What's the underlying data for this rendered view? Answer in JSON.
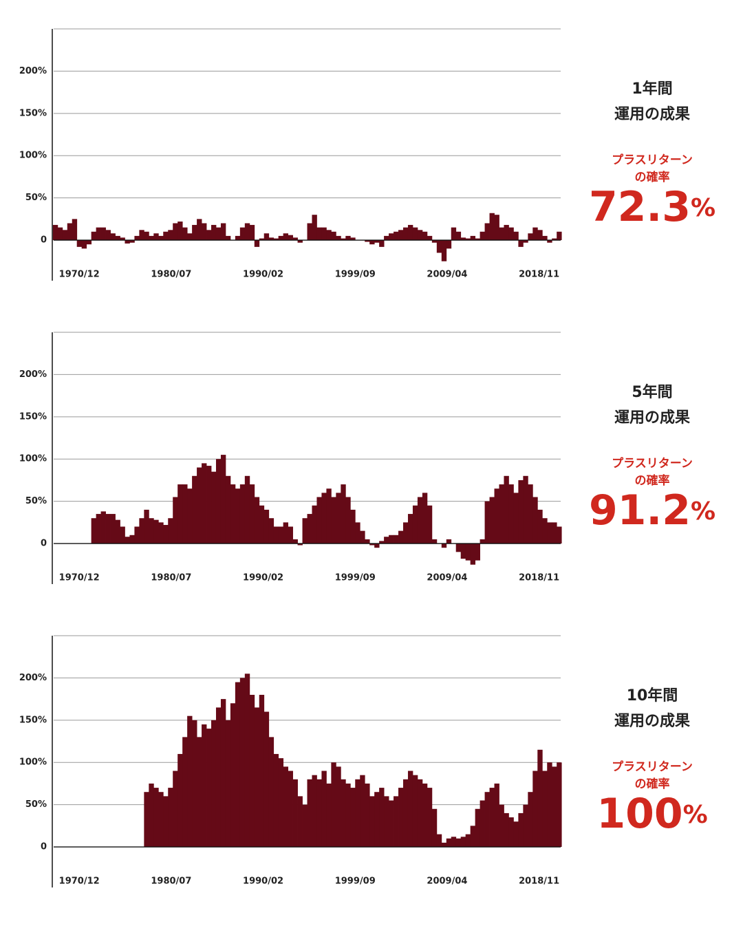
{
  "chart_data": [
    {
      "type": "bar",
      "heading": [
        "1年間",
        "運用の成果"
      ],
      "stat_label": [
        "プラスリターン",
        "の確率"
      ],
      "stat_value": 72.3,
      "stat_unit": "%",
      "stat_color": "#d0281e",
      "x": [
        "1968/06",
        "1968/12",
        "1969/06",
        "1969/12",
        "1970/06",
        "1970/12",
        "1971/06",
        "1971/12",
        "1972/06",
        "1972/12",
        "1973/06",
        "1973/12",
        "1974/06",
        "1974/12",
        "1975/06",
        "1975/12",
        "1976/06",
        "1976/12",
        "1977/06",
        "1977/12",
        "1978/06",
        "1978/12",
        "1979/06",
        "1979/12",
        "1980/06",
        "1980/12",
        "1981/06",
        "1981/12",
        "1982/06",
        "1982/12",
        "1983/06",
        "1983/12",
        "1984/06",
        "1984/12",
        "1985/06",
        "1985/12",
        "1986/06",
        "1986/12",
        "1987/06",
        "1987/12",
        "1988/06",
        "1988/12",
        "1989/06",
        "1989/12",
        "1990/06",
        "1990/12",
        "1991/06",
        "1991/12",
        "1992/06",
        "1992/12",
        "1993/06",
        "1993/12",
        "1994/06",
        "1994/12",
        "1995/06",
        "1995/12",
        "1996/06",
        "1996/12",
        "1997/06",
        "1997/12",
        "1998/06",
        "1998/12",
        "1999/06",
        "1999/12",
        "2000/06",
        "2000/12",
        "2001/06",
        "2001/12",
        "2002/06",
        "2002/12",
        "2003/06",
        "2003/12",
        "2004/06",
        "2004/12",
        "2005/06",
        "2005/12",
        "2006/06",
        "2006/12",
        "2007/06",
        "2007/12",
        "2008/06",
        "2008/12",
        "2009/06",
        "2009/12",
        "2010/06",
        "2010/12",
        "2011/06",
        "2011/12",
        "2012/06",
        "2012/12",
        "2013/06",
        "2013/12",
        "2014/06",
        "2014/12",
        "2015/06",
        "2015/12",
        "2016/06",
        "2016/12",
        "2017/06",
        "2017/12",
        "2018/06",
        "2018/12",
        "2019/06",
        "2019/12",
        "2020/06",
        "2020/12"
      ],
      "values": [
        18,
        15,
        12,
        20,
        25,
        -8,
        -10,
        -5,
        10,
        15,
        15,
        12,
        8,
        5,
        3,
        -4,
        -3,
        5,
        12,
        10,
        5,
        8,
        5,
        10,
        12,
        20,
        22,
        15,
        8,
        18,
        25,
        20,
        12,
        18,
        15,
        20,
        5,
        0,
        5,
        15,
        20,
        18,
        -8,
        2,
        8,
        3,
        2,
        5,
        8,
        6,
        3,
        -3,
        0,
        20,
        30,
        15,
        15,
        12,
        10,
        5,
        2,
        5,
        3,
        0,
        0,
        -2,
        -5,
        -3,
        -8,
        5,
        8,
        10,
        12,
        15,
        18,
        15,
        12,
        10,
        5,
        -3,
        -15,
        -25,
        -10,
        15,
        10,
        3,
        2,
        5,
        2,
        10,
        20,
        32,
        30,
        15,
        18,
        15,
        10,
        -8,
        -3,
        8,
        15,
        12,
        5,
        -3,
        2,
        10
      ],
      "color": "#650a17",
      "xlim": [
        "1968/04",
        "2021/02"
      ],
      "xticks": [
        "1970/12",
        "1980/07",
        "1990/02",
        "1999/09",
        "2009/04",
        "2018/11"
      ],
      "ylim": [
        -48,
        250
      ],
      "yticks": [
        0,
        {
          "value": 50,
          "label": "50%"
        },
        {
          "value": 100,
          "label": "100%"
        },
        {
          "value": 150,
          "label": "150%"
        },
        {
          "value": 200,
          "label": "200%"
        }
      ],
      "grid": true
    },
    {
      "type": "bar",
      "heading": [
        "5年間",
        "運用の成果"
      ],
      "stat_label": [
        "プラスリターン",
        "の確率"
      ],
      "stat_value": 91.2,
      "stat_unit": "%",
      "stat_color": "#d0281e",
      "x": [
        "1968/06",
        "1968/12",
        "1969/06",
        "1969/12",
        "1970/06",
        "1970/12",
        "1971/06",
        "1971/12",
        "1972/06",
        "1972/12",
        "1973/06",
        "1973/12",
        "1974/06",
        "1974/12",
        "1975/06",
        "1975/12",
        "1976/06",
        "1976/12",
        "1977/06",
        "1977/12",
        "1978/06",
        "1978/12",
        "1979/06",
        "1979/12",
        "1980/06",
        "1980/12",
        "1981/06",
        "1981/12",
        "1982/06",
        "1982/12",
        "1983/06",
        "1983/12",
        "1984/06",
        "1984/12",
        "1985/06",
        "1985/12",
        "1986/06",
        "1986/12",
        "1987/06",
        "1987/12",
        "1988/06",
        "1988/12",
        "1989/06",
        "1989/12",
        "1990/06",
        "1990/12",
        "1991/06",
        "1991/12",
        "1992/06",
        "1992/12",
        "1993/06",
        "1993/12",
        "1994/06",
        "1994/12",
        "1995/06",
        "1995/12",
        "1996/06",
        "1996/12",
        "1997/06",
        "1997/12",
        "1998/06",
        "1998/12",
        "1999/06",
        "1999/12",
        "2000/06",
        "2000/12",
        "2001/06",
        "2001/12",
        "2002/06",
        "2002/12",
        "2003/06",
        "2003/12",
        "2004/06",
        "2004/12",
        "2005/06",
        "2005/12",
        "2006/06",
        "2006/12",
        "2007/06",
        "2007/12",
        "2008/06",
        "2008/12",
        "2009/06",
        "2009/12",
        "2010/06",
        "2010/12",
        "2011/06",
        "2011/12",
        "2012/06",
        "2012/12",
        "2013/06",
        "2013/12",
        "2014/06",
        "2014/12",
        "2015/06",
        "2015/12",
        "2016/06",
        "2016/12",
        "2017/06",
        "2017/12",
        "2018/06",
        "2018/12",
        "2019/06",
        "2019/12",
        "2020/06",
        "2020/12"
      ],
      "values": [
        null,
        null,
        null,
        null,
        null,
        null,
        null,
        null,
        30,
        35,
        38,
        35,
        35,
        28,
        20,
        8,
        10,
        20,
        30,
        40,
        30,
        28,
        25,
        22,
        30,
        55,
        70,
        70,
        65,
        80,
        90,
        95,
        92,
        85,
        100,
        105,
        80,
        70,
        65,
        70,
        80,
        70,
        55,
        45,
        40,
        30,
        20,
        20,
        25,
        20,
        5,
        -2,
        30,
        35,
        45,
        55,
        60,
        65,
        55,
        60,
        70,
        55,
        40,
        25,
        15,
        5,
        -2,
        -5,
        3,
        8,
        10,
        10,
        15,
        25,
        35,
        45,
        55,
        60,
        45,
        5,
        0,
        -5,
        5,
        0,
        -10,
        -18,
        -20,
        -25,
        -20,
        5,
        50,
        55,
        65,
        70,
        80,
        70,
        60,
        75,
        80,
        70,
        55,
        40,
        30,
        25,
        25,
        20
      ],
      "color": "#650a17",
      "xlim": [
        "1968/04",
        "2021/02"
      ],
      "xticks": [
        "1970/12",
        "1980/07",
        "1990/02",
        "1999/09",
        "2009/04",
        "2018/11"
      ],
      "ylim": [
        -48,
        250
      ],
      "yticks": [
        0,
        {
          "value": 50,
          "label": "50%"
        },
        {
          "value": 100,
          "label": "100%"
        },
        {
          "value": 150,
          "label": "150%"
        },
        {
          "value": 200,
          "label": "200%"
        }
      ],
      "grid": true
    },
    {
      "type": "bar",
      "heading": [
        "10年間",
        "運用の成果"
      ],
      "stat_label": [
        "プラスリターン",
        "の確率"
      ],
      "stat_value": 100,
      "stat_unit": "%",
      "stat_color": "#d0281e",
      "x": [
        "1968/06",
        "1968/12",
        "1969/06",
        "1969/12",
        "1970/06",
        "1970/12",
        "1971/06",
        "1971/12",
        "1972/06",
        "1972/12",
        "1973/06",
        "1973/12",
        "1974/06",
        "1974/12",
        "1975/06",
        "1975/12",
        "1976/06",
        "1976/12",
        "1977/06",
        "1977/12",
        "1978/06",
        "1978/12",
        "1979/06",
        "1979/12",
        "1980/06",
        "1980/12",
        "1981/06",
        "1981/12",
        "1982/06",
        "1982/12",
        "1983/06",
        "1983/12",
        "1984/06",
        "1984/12",
        "1985/06",
        "1985/12",
        "1986/06",
        "1986/12",
        "1987/06",
        "1987/12",
        "1988/06",
        "1988/12",
        "1989/06",
        "1989/12",
        "1990/06",
        "1990/12",
        "1991/06",
        "1991/12",
        "1992/06",
        "1992/12",
        "1993/06",
        "1993/12",
        "1994/06",
        "1994/12",
        "1995/06",
        "1995/12",
        "1996/06",
        "1996/12",
        "1997/06",
        "1997/12",
        "1998/06",
        "1998/12",
        "1999/06",
        "1999/12",
        "2000/06",
        "2000/12",
        "2001/06",
        "2001/12",
        "2002/06",
        "2002/12",
        "2003/06",
        "2003/12",
        "2004/06",
        "2004/12",
        "2005/06",
        "2005/12",
        "2006/06",
        "2006/12",
        "2007/06",
        "2007/12",
        "2008/06",
        "2008/12",
        "2009/06",
        "2009/12",
        "2010/06",
        "2010/12",
        "2011/06",
        "2011/12",
        "2012/06",
        "2012/12",
        "2013/06",
        "2013/12",
        "2014/06",
        "2014/12",
        "2015/06",
        "2015/12",
        "2016/06",
        "2016/12",
        "2017/06",
        "2017/12",
        "2018/06",
        "2018/12",
        "2019/06",
        "2019/12",
        "2020/06",
        "2020/12"
      ],
      "values": [
        null,
        null,
        null,
        null,
        null,
        null,
        null,
        null,
        null,
        null,
        null,
        null,
        null,
        null,
        null,
        null,
        null,
        null,
        null,
        65,
        75,
        70,
        65,
        60,
        70,
        90,
        110,
        130,
        155,
        150,
        130,
        145,
        140,
        150,
        165,
        175,
        150,
        170,
        195,
        200,
        205,
        180,
        165,
        180,
        160,
        130,
        110,
        105,
        95,
        90,
        80,
        60,
        50,
        80,
        85,
        80,
        90,
        75,
        100,
        95,
        80,
        75,
        70,
        80,
        85,
        75,
        60,
        65,
        70,
        60,
        55,
        60,
        70,
        80,
        90,
        85,
        80,
        75,
        70,
        45,
        15,
        5,
        10,
        12,
        10,
        12,
        15,
        25,
        45,
        55,
        65,
        70,
        75,
        50,
        40,
        35,
        30,
        40,
        50,
        65,
        90,
        115,
        90,
        100,
        95,
        100
      ],
      "color": "#650a17",
      "xlim": [
        "1968/04",
        "2021/02"
      ],
      "xticks": [
        "1970/12",
        "1980/07",
        "1990/02",
        "1999/09",
        "2009/04",
        "2018/11"
      ],
      "ylim": [
        -48,
        250
      ],
      "yticks": [
        0,
        {
          "value": 50,
          "label": "50%"
        },
        {
          "value": 100,
          "label": "100%"
        },
        {
          "value": 150,
          "label": "150%"
        },
        {
          "value": 200,
          "label": "200%"
        }
      ],
      "grid": true
    }
  ]
}
